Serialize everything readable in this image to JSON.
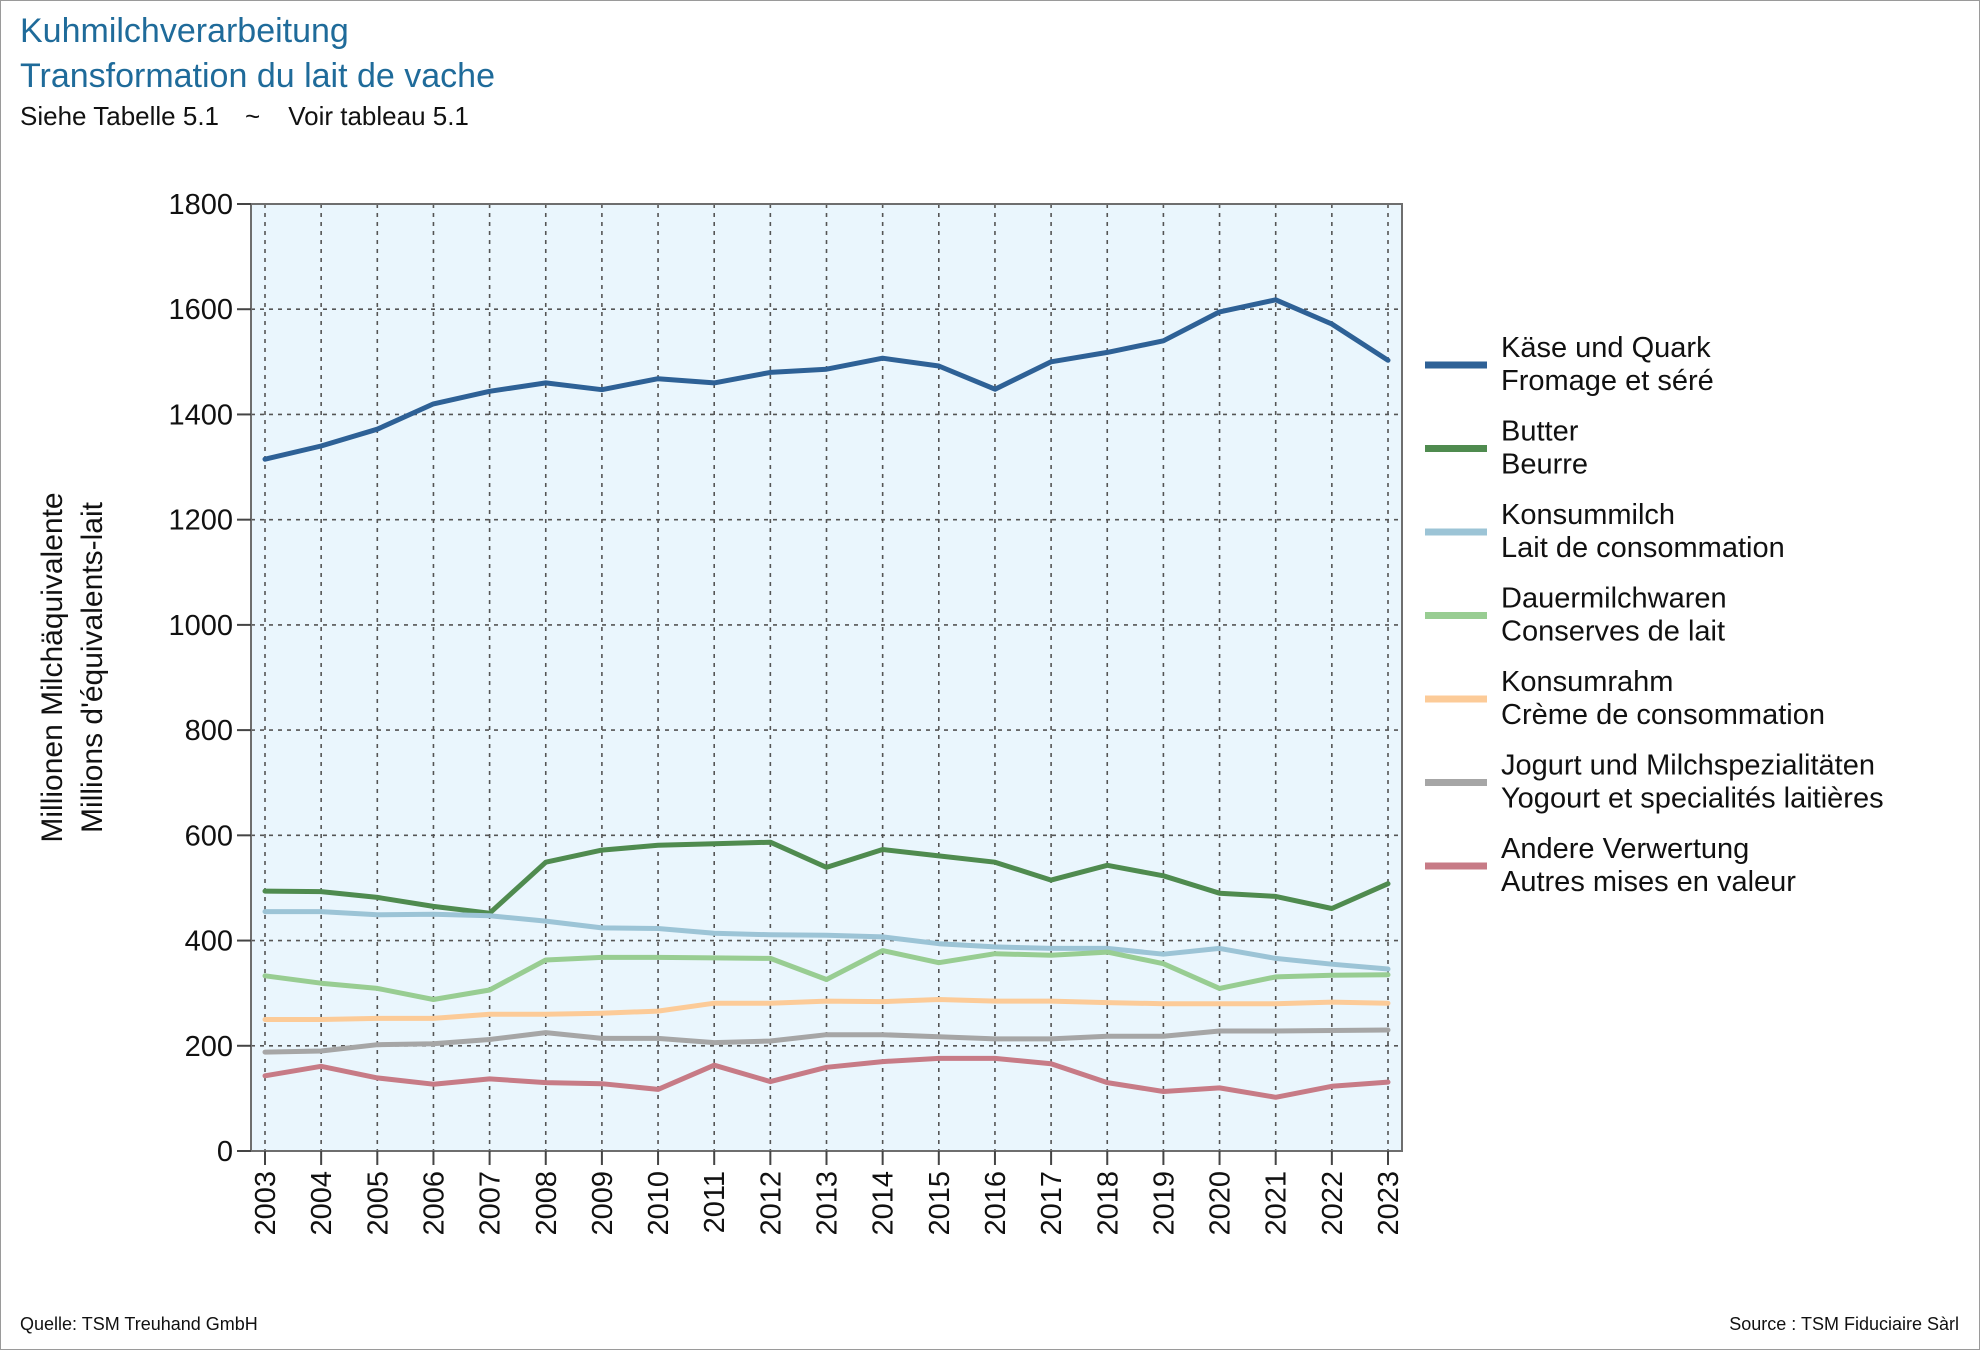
{
  "header": {
    "title_de": "Kuhmilchverarbeitung",
    "title_fr": "Transformation du lait de vache",
    "subtitle_left": "Siehe Tabelle 5.1",
    "subtitle_sep": "~",
    "subtitle_right": "Voir tableau 5.1"
  },
  "footer": {
    "left": "Quelle: TSM Treuhand GmbH",
    "right": "Source : TSM Fiduciaire Sàrl"
  },
  "chart_data": {
    "type": "line",
    "ylabel": [
      "Millionen Milchäquivalente",
      "Millions d'équivalents-lait"
    ],
    "xlabel": "",
    "ylim": [
      0,
      1800
    ],
    "yticks": [
      0,
      200,
      400,
      600,
      800,
      1000,
      1200,
      1400,
      1600,
      1800
    ],
    "grid": true,
    "legend_position": "right",
    "x": [
      "2003",
      "2004",
      "2005",
      "2006",
      "2007",
      "2008",
      "2009",
      "2010",
      "2011",
      "2012",
      "2013",
      "2014",
      "2015",
      "2016",
      "2017",
      "2018",
      "2019",
      "2020",
      "2021",
      "2022",
      "2023"
    ],
    "series": [
      {
        "name": "Käse und Quark",
        "name_fr": "Fromage et séré",
        "color": "#2e6196",
        "values": [
          1315,
          1340,
          1372,
          1420,
          1444,
          1460,
          1447,
          1468,
          1460,
          1480,
          1486,
          1507,
          1492,
          1448,
          1500,
          1518,
          1540,
          1595,
          1618,
          1572,
          1503
        ]
      },
      {
        "name": "Butter",
        "name_fr": "Beurre",
        "color": "#4f8b4f",
        "values": [
          494,
          493,
          482,
          465,
          452,
          549,
          572,
          581,
          584,
          587,
          539,
          573,
          561,
          549,
          515,
          543,
          523,
          490,
          484,
          461,
          508
        ]
      },
      {
        "name": "Konsummilch",
        "name_fr": "Lait de consommation",
        "color": "#9cc4d6",
        "values": [
          455,
          455,
          449,
          450,
          447,
          437,
          424,
          423,
          414,
          411,
          410,
          407,
          394,
          388,
          385,
          385,
          374,
          385,
          366,
          355,
          346
        ]
      },
      {
        "name": "Dauermilchwaren",
        "name_fr": "Conserves de lait",
        "color": "#98cd92",
        "values": [
          333,
          319,
          309,
          288,
          306,
          363,
          368,
          368,
          367,
          366,
          326,
          381,
          358,
          375,
          372,
          378,
          356,
          309,
          331,
          334,
          335
        ]
      },
      {
        "name": "Konsumrahm",
        "name_fr": "Crème de consommation",
        "color": "#fccb98",
        "values": [
          250,
          250,
          252,
          252,
          260,
          260,
          262,
          266,
          281,
          281,
          285,
          284,
          288,
          285,
          285,
          282,
          280,
          280,
          280,
          283,
          281
        ]
      },
      {
        "name": "Jogurt und Milchspezialitäten",
        "name_fr": "Yogourt et specialités laitières",
        "color": "#a6a6a6",
        "values": [
          188,
          190,
          202,
          204,
          212,
          225,
          214,
          214,
          206,
          209,
          221,
          221,
          217,
          213,
          213,
          218,
          218,
          228,
          228,
          229,
          230
        ]
      },
      {
        "name": "Andere Verwertung",
        "name_fr": "Autres mises en valeur",
        "color": "#c77b86",
        "values": [
          143,
          161,
          139,
          127,
          137,
          130,
          128,
          117,
          163,
          132,
          159,
          170,
          176,
          176,
          166,
          130,
          113,
          120,
          102,
          123,
          131
        ]
      }
    ]
  }
}
